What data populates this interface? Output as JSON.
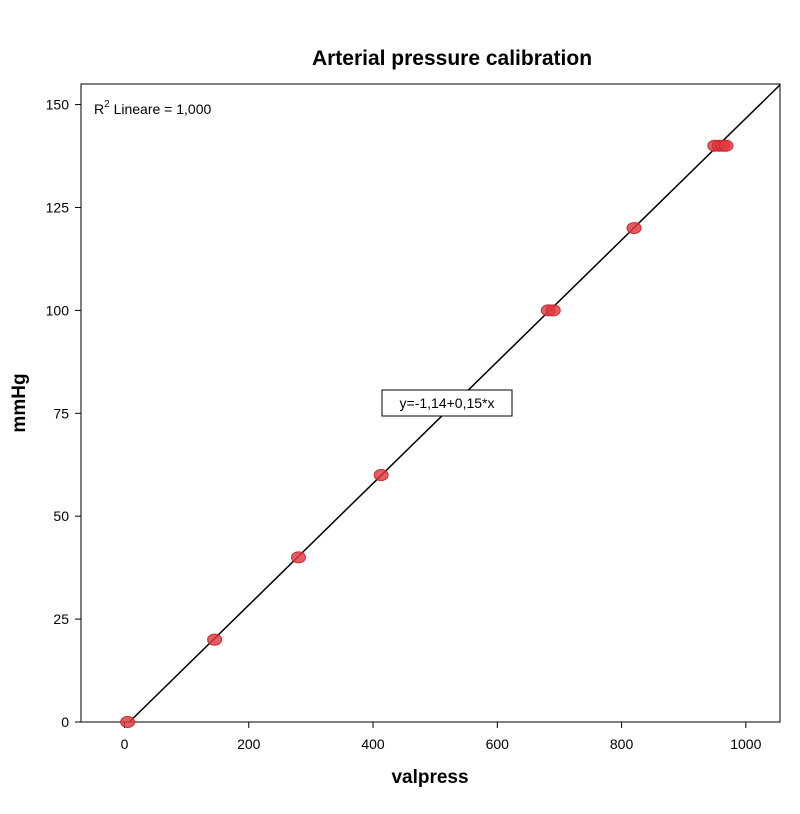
{
  "chart_data": {
    "type": "scatter",
    "title": "Arterial pressure calibration",
    "xlabel": "valpress",
    "ylabel": "mmHg",
    "xlim": [
      -70,
      1055
    ],
    "ylim": [
      0,
      155
    ],
    "x_ticks": [
      0,
      200,
      400,
      600,
      800,
      1000
    ],
    "y_ticks": [
      0,
      25,
      50,
      75,
      100,
      125,
      150
    ],
    "grid": false,
    "marker_color": "#e0393e",
    "line_color": "#000000",
    "r2_label_base": "R",
    "r2_label_exp": "2",
    "r2_label_rest": " Lineare = 1,000",
    "equation_label": "y=-1,14+0,15*x",
    "fit": {
      "intercept": -1.14,
      "slope": 0.1478
    },
    "points": [
      {
        "x": 5,
        "y": 0
      },
      {
        "x": 145,
        "y": 20
      },
      {
        "x": 280,
        "y": 40
      },
      {
        "x": 413,
        "y": 60
      },
      {
        "x": 682,
        "y": 100
      },
      {
        "x": 690,
        "y": 100
      },
      {
        "x": 820,
        "y": 120
      },
      {
        "x": 950,
        "y": 140
      },
      {
        "x": 957,
        "y": 140
      },
      {
        "x": 963,
        "y": 140
      },
      {
        "x": 968,
        "y": 140
      }
    ]
  }
}
